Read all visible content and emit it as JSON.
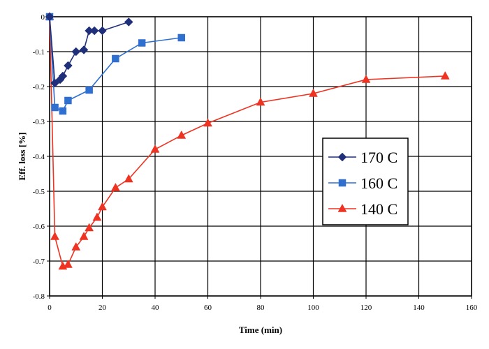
{
  "chart_data": {
    "type": "line",
    "title": "",
    "xlabel": "Time (min)",
    "ylabel": "Eff. loss [%]",
    "xlim": [
      0,
      160
    ],
    "ylim": [
      -0.8,
      0
    ],
    "xticks": [
      0,
      20,
      40,
      60,
      80,
      100,
      120,
      140,
      160
    ],
    "yticks": [
      0,
      -0.1,
      -0.2,
      -0.3,
      -0.4,
      -0.5,
      -0.6,
      -0.7,
      -0.8
    ],
    "xtick_labels": [
      "0",
      "20",
      "40",
      "60",
      "80",
      "100",
      "120",
      "140",
      "160"
    ],
    "ytick_labels": [
      "0",
      "-0.1",
      "-0.2",
      "-0.3",
      "-0.4",
      "-0.5",
      "-0.6",
      "-0.7",
      "-0.8"
    ],
    "grid": true,
    "legend_position": "right-middle",
    "series": [
      {
        "name": "170 C",
        "color": "#1f2f7a",
        "marker": "diamond",
        "x": [
          0,
          2,
          4,
          5,
          7,
          10,
          13,
          15,
          17,
          20,
          30
        ],
        "y": [
          0,
          -0.19,
          -0.18,
          -0.17,
          -0.14,
          -0.1,
          -0.095,
          -0.04,
          -0.04,
          -0.04,
          -0.015
        ]
      },
      {
        "name": "160 C",
        "color": "#2e6fd0",
        "marker": "square",
        "x": [
          0,
          2,
          5,
          7,
          15,
          25,
          35,
          50
        ],
        "y": [
          0,
          -0.26,
          -0.27,
          -0.24,
          -0.21,
          -0.12,
          -0.075,
          -0.06
        ]
      },
      {
        "name": "140 C",
        "color": "#ee3322",
        "marker": "triangle",
        "x": [
          0,
          2,
          5,
          7,
          10,
          13,
          15,
          18,
          20,
          25,
          30,
          40,
          50,
          60,
          80,
          100,
          120,
          150
        ],
        "y": [
          0,
          -0.63,
          -0.715,
          -0.71,
          -0.66,
          -0.63,
          -0.605,
          -0.575,
          -0.545,
          -0.49,
          -0.465,
          -0.38,
          -0.34,
          -0.305,
          -0.245,
          -0.22,
          -0.18,
          -0.17
        ]
      }
    ]
  }
}
